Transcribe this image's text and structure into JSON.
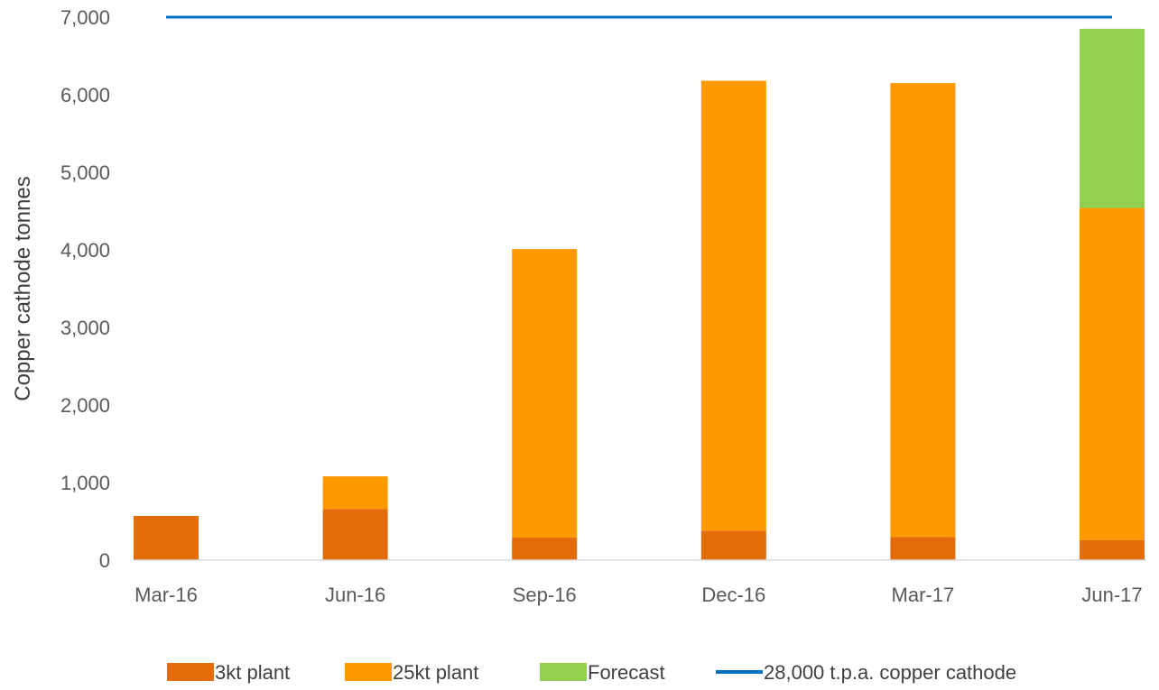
{
  "chart_data": {
    "type": "bar",
    "stacked": true,
    "title": "",
    "xlabel": "",
    "ylabel": "Copper cathode tonnes",
    "ylim": [
      0,
      7000
    ],
    "yticks": [
      0,
      1000,
      2000,
      3000,
      4000,
      5000,
      6000,
      7000
    ],
    "ytick_labels": [
      "0",
      "1,000",
      "2,000",
      "3,000",
      "4,000",
      "5,000",
      "6,000",
      "7,000"
    ],
    "categories": [
      "Mar-16",
      "Jun-16",
      "Sep-16",
      "Dec-16",
      "Mar-17",
      "Jun-17"
    ],
    "series": [
      {
        "name": "3kt plant",
        "color": "#E36C0A",
        "values": [
          570,
          660,
          290,
          380,
          300,
          260
        ]
      },
      {
        "name": "25kt plant",
        "color": "#FF9900",
        "values": [
          0,
          420,
          3720,
          5800,
          5850,
          4280
        ]
      },
      {
        "name": "Forecast",
        "color": "#92D050",
        "values": [
          0,
          0,
          0,
          0,
          0,
          2310
        ]
      }
    ],
    "reference_line": {
      "name": "28,000 t.p.a. copper cathode",
      "color": "#0070C0",
      "value": 7000
    },
    "grid": false,
    "legend_position": "bottom"
  }
}
